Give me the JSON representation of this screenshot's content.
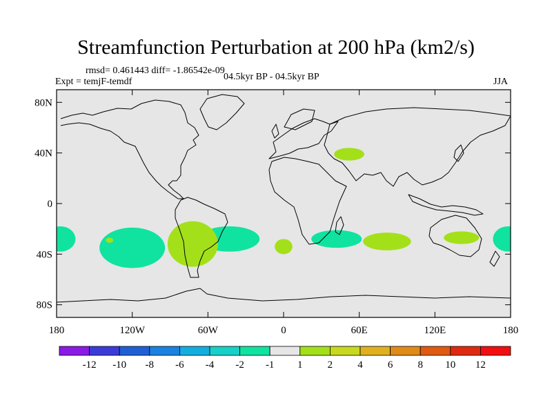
{
  "title": "Streamfunction Perturbation at 200 hPa (km2/s)",
  "stats": "rmsd= 0.461443 diff= -1.86542e-09",
  "expt": "Expt = temjF-temdf",
  "period": "04.5kyr BP - 04.5kyr BP",
  "season": "JJA",
  "chart_data": {
    "type": "heatmap",
    "title": "Streamfunction Perturbation at 200 hPa (km2/s)",
    "projection": "cylindrical equidistant",
    "xlim": [
      -180,
      180
    ],
    "ylim": [
      -90,
      90
    ],
    "x_ticks": [
      {
        "value": -180,
        "label": "180"
      },
      {
        "value": -120,
        "label": "120W"
      },
      {
        "value": -60,
        "label": "60W"
      },
      {
        "value": 0,
        "label": "0"
      },
      {
        "value": 60,
        "label": "60E"
      },
      {
        "value": 120,
        "label": "120E"
      },
      {
        "value": 180,
        "label": "180"
      }
    ],
    "y_ticks": [
      {
        "value": 80,
        "label": "80N"
      },
      {
        "value": 40,
        "label": "40N"
      },
      {
        "value": 0,
        "label": "0"
      },
      {
        "value": -40,
        "label": "40S"
      },
      {
        "value": -80,
        "label": "80S"
      }
    ],
    "colorbar": {
      "labels": [
        "-12",
        "-10",
        "-8",
        "-6",
        "-4",
        "-2",
        "-1",
        "1",
        "2",
        "4",
        "6",
        "8",
        "10",
        "12"
      ],
      "colors": [
        "#8a1ae6",
        "#3b3bd9",
        "#1f5fd6",
        "#1a82e0",
        "#13aee0",
        "#17d0c8",
        "#10e3a0",
        "#e6e6e6",
        "#a3e01a",
        "#c8d81e",
        "#e0b020",
        "#e08a18",
        "#e05a10",
        "#e02a10",
        "#f20f0f"
      ]
    },
    "regions": [
      {
        "category": "-2 to -1",
        "lon": -177,
        "lat": -28,
        "dlon": 12,
        "dlat": 10
      },
      {
        "category": "-2 to -1",
        "lon": -120,
        "lat": -35,
        "dlon": 26,
        "dlat": 16
      },
      {
        "category": "-2 to -1",
        "lon": -43,
        "lat": -28,
        "dlon": 24,
        "dlat": 10
      },
      {
        "category": "-2 to -1",
        "lon": 42,
        "lat": -28,
        "dlon": 20,
        "dlat": 7
      },
      {
        "category": "-2 to -1",
        "lon": 178,
        "lat": -28,
        "dlon": 12,
        "dlat": 10
      },
      {
        "category": "1 to 2",
        "lon": -72,
        "lat": -32,
        "dlon": 20,
        "dlat": 18
      },
      {
        "category": "1 to 2",
        "lon": -138,
        "lat": -29,
        "dlon": 3,
        "dlat": 2
      },
      {
        "category": "1 to 2",
        "lon": 0,
        "lat": -34,
        "dlon": 7,
        "dlat": 6
      },
      {
        "category": "1 to 2",
        "lon": 82,
        "lat": -30,
        "dlon": 19,
        "dlat": 7
      },
      {
        "category": "1 to 2",
        "lon": 141,
        "lat": -27,
        "dlon": 14,
        "dlat": 5
      },
      {
        "category": "1 to 2",
        "lon": 52,
        "lat": 39,
        "dlon": 12,
        "dlat": 5
      }
    ]
  }
}
